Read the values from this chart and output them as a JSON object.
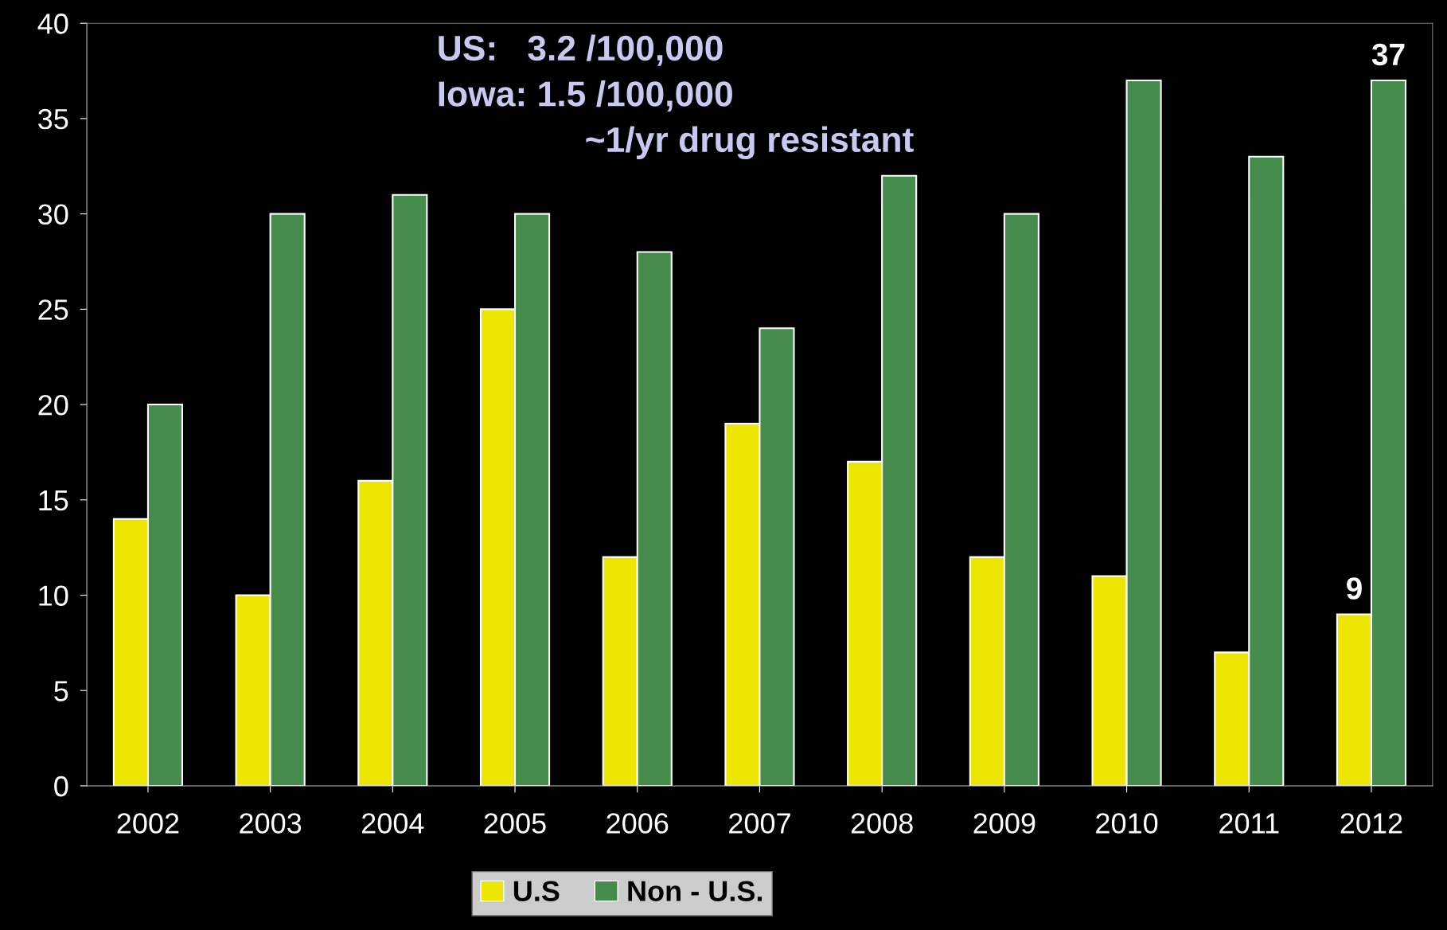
{
  "chart_data": {
    "type": "bar",
    "categories": [
      "2002",
      "2003",
      "2004",
      "2005",
      "2006",
      "2007",
      "2008",
      "2009",
      "2010",
      "2011",
      "2012"
    ],
    "series": [
      {
        "name": "U.S",
        "color": "#ede600",
        "values": [
          14,
          10,
          16,
          25,
          12,
          19,
          17,
          12,
          11,
          7,
          9
        ],
        "value_labels": [
          null,
          null,
          null,
          null,
          null,
          null,
          null,
          null,
          null,
          null,
          "9"
        ]
      },
      {
        "name": "Non - U.S.",
        "color": "#458b4b",
        "values": [
          20,
          30,
          31,
          30,
          28,
          24,
          32,
          30,
          37,
          33,
          37
        ],
        "value_labels": [
          null,
          null,
          null,
          null,
          null,
          null,
          null,
          null,
          null,
          null,
          "37"
        ]
      }
    ],
    "ylim": [
      0,
      40
    ],
    "yticks": [
      0,
      5,
      10,
      15,
      20,
      25,
      30,
      35,
      40
    ],
    "annotations": [
      "US:   3.2 /100,000",
      "Iowa: 1.5 /100,000",
      "~1/yr drug resistant"
    ],
    "grid": false,
    "legend": "bottom"
  }
}
